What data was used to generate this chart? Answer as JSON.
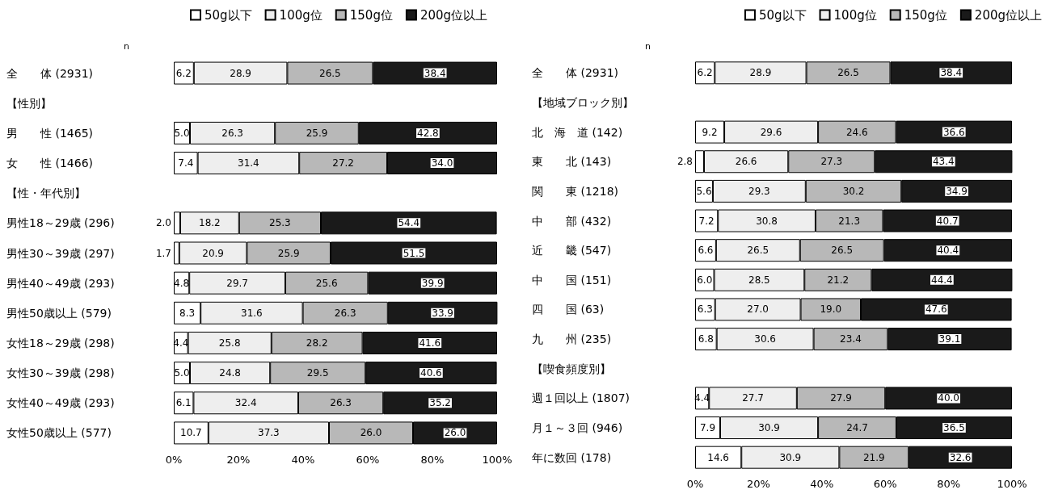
{
  "chart_data": [
    {
      "type": "bar",
      "orientation": "horizontal",
      "stacked": true,
      "legend": "top",
      "annotations": [
        "n"
      ],
      "categories": [
        "全　　体 (2931)",
        "【性別】",
        "男　　性 (1465)",
        "女　　性 (1466)",
        "【性・年代別】",
        "男性18～29歳 (296)",
        "男性30～39歳 (297)",
        "男性40～49歳 (293)",
        "男性50歳以上 (579)",
        "女性18～29歳 (298)",
        "女性30～39歳 (298)",
        "女性40～49歳 (293)",
        "女性50歳以上 (577)"
      ],
      "series": [
        {
          "name": "50g以下",
          "color": "#ffffff",
          "values": [
            6.2,
            null,
            5.0,
            7.4,
            null,
            2.0,
            1.7,
            4.8,
            8.3,
            4.4,
            5.0,
            6.1,
            10.7
          ],
          "value_labels": [
            "6.2",
            null,
            "5.0",
            "7.4",
            null,
            "2.0",
            "1.7",
            "4.8",
            "8.3",
            "4.4",
            "5.0",
            "6.1",
            "10.7"
          ]
        },
        {
          "name": "100g位",
          "color": "#eeeeee",
          "values": [
            28.9,
            null,
            26.3,
            31.4,
            null,
            18.2,
            20.9,
            29.7,
            31.6,
            25.8,
            24.8,
            32.4,
            37.3
          ],
          "value_labels": [
            "28.9",
            null,
            "26.3",
            "31.4",
            null,
            "18.2",
            "20.9",
            "29.7",
            "31.6",
            "25.8",
            "24.8",
            "32.4",
            "37.3"
          ]
        },
        {
          "name": "150g位",
          "color": "#b8b8b8",
          "values": [
            26.5,
            null,
            25.9,
            27.2,
            null,
            25.3,
            25.9,
            25.6,
            26.3,
            28.2,
            29.5,
            26.3,
            26.0
          ],
          "value_labels": [
            "26.5",
            null,
            "25.9",
            "27.2",
            null,
            "25.3",
            "25.9",
            "25.6",
            "26.3",
            "28.2",
            "29.5",
            "26.3",
            "26.0"
          ]
        },
        {
          "name": "200g位以上",
          "color": "#1a1a1a",
          "values": [
            38.4,
            null,
            42.8,
            34.0,
            null,
            54.4,
            51.5,
            39.9,
            33.9,
            41.6,
            40.6,
            35.2,
            26.0
          ],
          "value_labels": [
            "38.4",
            null,
            "42.8",
            "34.0",
            null,
            "54.4",
            "51.5",
            "39.9",
            "33.9",
            "41.6",
            "40.6",
            "35.2",
            "26.0"
          ]
        }
      ],
      "xlim": [
        0,
        100
      ],
      "xticks": [
        {
          "value": 0,
          "label": "0%"
        },
        {
          "value": 20,
          "label": "20%"
        },
        {
          "value": 40,
          "label": "40%"
        },
        {
          "value": 60,
          "label": "60%"
        },
        {
          "value": 80,
          "label": "80%"
        },
        {
          "value": 100,
          "label": "100%"
        }
      ]
    },
    {
      "type": "bar",
      "orientation": "horizontal",
      "stacked": true,
      "legend": "top right",
      "annotations": [
        "n"
      ],
      "categories": [
        "全　　体 (2931)",
        "【地域ブロック別】",
        "北　海　道 (142)",
        "東　　北 (143)",
        "関　　東 (1218)",
        "中　　部 (432)",
        "近　　畿 (547)",
        "中　　国 (151)",
        "四　　国 (63)",
        "九　　州 (235)",
        "【喫食頻度別】",
        "週１回以上 (1807)",
        "月１～３回 (946)",
        "年に数回 (178)"
      ],
      "series": [
        {
          "name": "50g以下",
          "color": "#ffffff",
          "values": [
            6.2,
            null,
            9.2,
            2.8,
            5.6,
            7.2,
            6.6,
            6.0,
            6.3,
            6.8,
            null,
            4.4,
            7.9,
            14.6
          ],
          "value_labels": [
            "6.2",
            null,
            "9.2",
            "2.8",
            "5.6",
            "7.2",
            "6.6",
            "6.0",
            "6.3",
            "6.8",
            null,
            "4.4",
            "7.9",
            "14.6"
          ]
        },
        {
          "name": "100g位",
          "color": "#eeeeee",
          "values": [
            28.9,
            null,
            29.6,
            26.6,
            29.3,
            30.8,
            26.5,
            28.5,
            27.0,
            30.6,
            null,
            27.7,
            30.9,
            30.9
          ],
          "value_labels": [
            "28.9",
            null,
            "29.6",
            "26.6",
            "29.3",
            "30.8",
            "26.5",
            "28.5",
            "27.0",
            "30.6",
            null,
            "27.7",
            "30.9",
            "30.9"
          ]
        },
        {
          "name": "150g位",
          "color": "#b8b8b8",
          "values": [
            26.5,
            null,
            24.6,
            27.3,
            30.2,
            21.3,
            26.5,
            21.2,
            19.0,
            23.4,
            null,
            27.9,
            24.7,
            21.9
          ],
          "value_labels": [
            "26.5",
            null,
            "24.6",
            "27.3",
            "30.2",
            "21.3",
            "26.5",
            "21.2",
            "19.0",
            "23.4",
            null,
            "27.9",
            "24.7",
            "21.9"
          ]
        },
        {
          "name": "200g位以上",
          "color": "#1a1a1a",
          "values": [
            38.4,
            null,
            36.6,
            43.4,
            34.9,
            40.7,
            40.4,
            44.4,
            47.6,
            39.1,
            null,
            40.0,
            36.5,
            32.6
          ],
          "value_labels": [
            "38.4",
            null,
            "36.6",
            "43.4",
            "34.9",
            "40.7",
            "40.4",
            "44.4",
            "47.6",
            "39.1",
            null,
            "40.0",
            "36.5",
            "32.6"
          ]
        }
      ],
      "xlim": [
        0,
        100
      ],
      "xticks": [
        {
          "value": 0,
          "label": "0%"
        },
        {
          "value": 20,
          "label": "20%"
        },
        {
          "value": 40,
          "label": "40%"
        },
        {
          "value": 60,
          "label": "60%"
        },
        {
          "value": 80,
          "label": "80%"
        },
        {
          "value": 100,
          "label": "100%"
        }
      ]
    }
  ]
}
